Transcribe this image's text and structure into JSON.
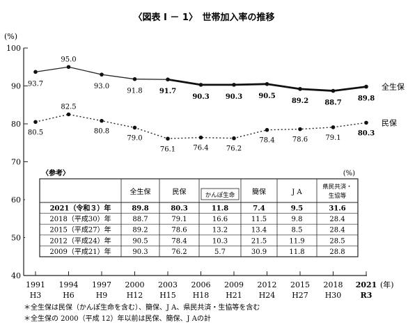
{
  "title": "〈図表 I － 1〉　世帯加入率の推移",
  "y_unit": "(%)",
  "year_unit": "(年)",
  "chart_data": {
    "type": "line",
    "title": "〈図表 I － 1〉　世帯加入率の推移",
    "ylabel": "(%)",
    "xlabel": "(年)",
    "ylim": [
      40,
      100
    ],
    "y_ticks": [
      40,
      50,
      60,
      70,
      80,
      90,
      100
    ],
    "categories": [
      "1991",
      "1994",
      "1997",
      "2000",
      "2003",
      "2006",
      "2009",
      "2012",
      "2015",
      "2018",
      "2021"
    ],
    "category_sublabels": [
      "H3",
      "H6",
      "H9",
      "H12",
      "H15",
      "H18",
      "H21",
      "H24",
      "H27",
      "H30",
      "R3"
    ],
    "grid": false,
    "legend": "series names at right end of lines",
    "series": [
      {
        "name": "全生保",
        "style": "solid",
        "values": [
          93.7,
          95.0,
          93.0,
          91.8,
          91.7,
          90.3,
          90.3,
          90.5,
          89.2,
          88.7,
          89.8
        ],
        "labels": [
          "93.7",
          "95.0",
          "93.0",
          "91.8",
          "91.7",
          "90.3",
          "90.3",
          "90.5",
          "89.2",
          "88.7",
          "89.8"
        ]
      },
      {
        "name": "民保",
        "style": "dotted",
        "values": [
          80.5,
          82.5,
          80.8,
          79.0,
          76.1,
          76.4,
          76.2,
          78.4,
          78.6,
          79.1,
          80.3
        ],
        "labels": [
          "80.5",
          "82.5",
          "80.8",
          "79.0",
          "76.1",
          "76.4",
          "76.2",
          "78.4",
          "78.6",
          "79.1",
          "80.3"
        ]
      }
    ]
  },
  "table": {
    "title": "〈参考〉",
    "unit": "(%)",
    "headers": [
      "",
      "全生保",
      "民保",
      "かんぽ生命",
      "簡保",
      "J A",
      "県民共済・生協等"
    ],
    "rows": [
      [
        "2021（令和３）年",
        "89.8",
        "80.3",
        "11.8",
        "7.4",
        "9.5",
        "31.6"
      ],
      [
        "2018（平成30）年",
        "88.7",
        "79.1",
        "16.6",
        "11.5",
        "9.8",
        "28.4"
      ],
      [
        "2015（平成27）年",
        "89.2",
        "78.6",
        "13.2",
        "13.4",
        "8.5",
        "28.4"
      ],
      [
        "2012（平成24）年",
        "90.5",
        "78.4",
        "10.3",
        "21.5",
        "11.9",
        "28.5"
      ],
      [
        "2009（平成21）年",
        "90.3",
        "76.2",
        "5.7",
        "30.9",
        "11.8",
        "28.8"
      ]
    ]
  },
  "footnotes": [
    "＊全生保は民保（かんぽ生命を含む）、簡保、J A、県民共済・生協等を含む",
    "＊全生保の 2000（平成 12）年以前は民保、簡保、J Aの計"
  ]
}
